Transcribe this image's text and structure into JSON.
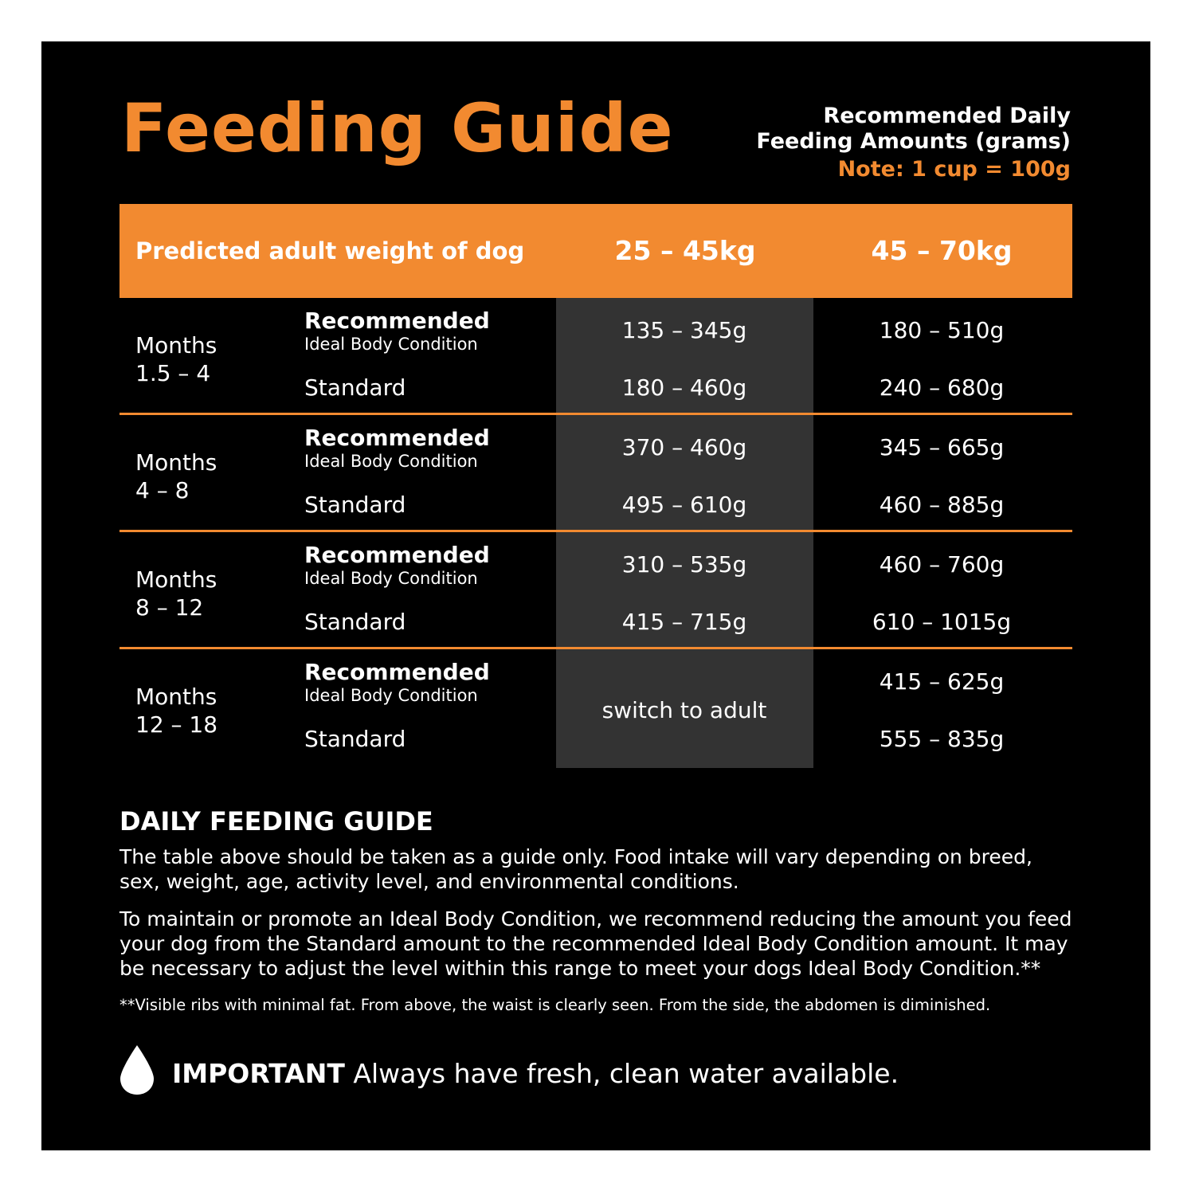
{
  "title": "Feeding Guide",
  "note": {
    "line1": "Recommended Daily",
    "line2": "Feeding Amounts (grams)",
    "cup": "Note: 1 cup = 100g"
  },
  "table": {
    "header_label": "Predicted adult weight of dog",
    "columns": [
      "25 – 45kg",
      "45 – 70kg"
    ],
    "recommended_label": "Recommended",
    "ideal_label": "Ideal Body Condition",
    "standard_label": "Standard",
    "rows": [
      {
        "months_label": "Months",
        "months_range": "1.5 – 4",
        "recommended": [
          "135 – 345g",
          "180 – 510g"
        ],
        "standard": [
          "180 – 460g",
          "240 – 680g"
        ]
      },
      {
        "months_label": "Months",
        "months_range": "4 – 8",
        "recommended": [
          "370 – 460g",
          "345 – 665g"
        ],
        "standard": [
          "495 – 610g",
          "460 – 885g"
        ]
      },
      {
        "months_label": "Months",
        "months_range": "8 – 12",
        "recommended": [
          "310 – 535g",
          "460 – 760g"
        ],
        "standard": [
          "415 – 715g",
          "610 – 1015g"
        ]
      },
      {
        "months_label": "Months",
        "months_range": "12 – 18",
        "merged_col1": "switch to adult",
        "recommended": [
          "",
          "415 – 625g"
        ],
        "standard": [
          "",
          "555 – 835g"
        ]
      }
    ]
  },
  "guide": {
    "heading": "DAILY FEEDING GUIDE",
    "paragraph1": "The table above should be taken as a guide only. Food intake will vary depending on breed, sex, weight, age, activity level, and environmental conditions.",
    "paragraph2": "To maintain or promote an Ideal Body Condition, we recommend reducing the amount you feed your dog from the Standard amount to the recommended Ideal Body Condition amount. It may be necessary to adjust the level within this range to meet your dogs Ideal Body Condition.**",
    "footnote": "**Visible ribs with minimal fat. From above, the waist is clearly seen. From the side, the abdomen is diminished."
  },
  "important": {
    "icon": "water-drop-icon",
    "label": "IMPORTANT",
    "text": " Always have fresh, clean water available."
  },
  "colors": {
    "accent": "#f28a30",
    "background": "#000000",
    "shaded_column": "#333333",
    "text": "#ffffff"
  }
}
